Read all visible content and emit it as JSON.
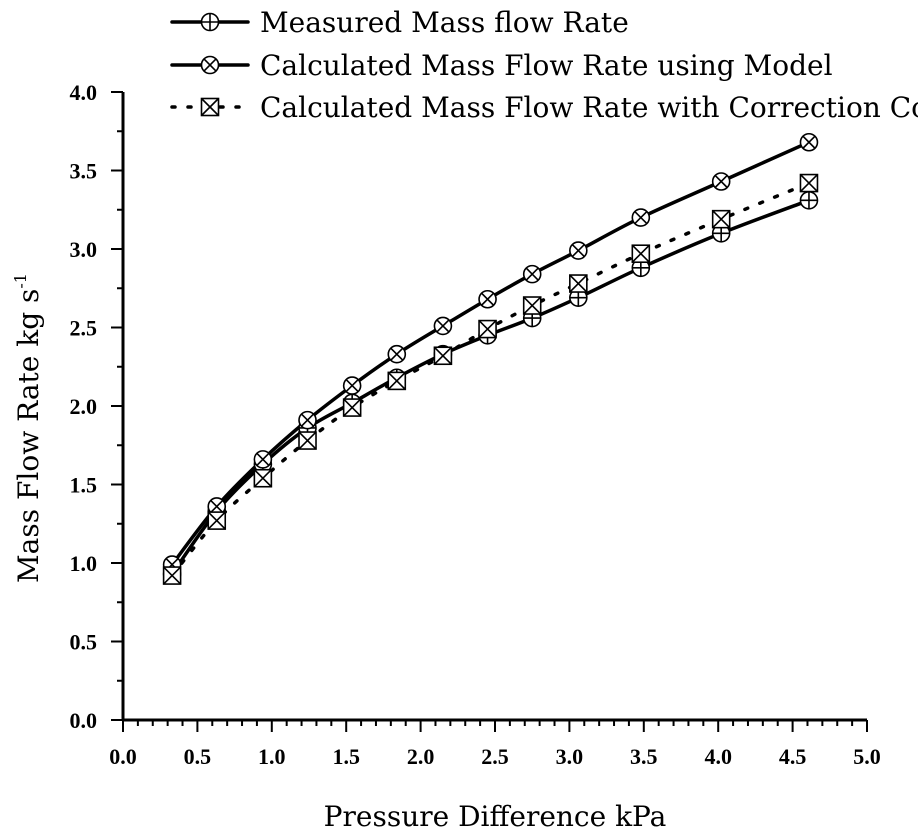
{
  "chart_data": {
    "type": "line",
    "title": "",
    "xlabel": "Pressure Difference kPa",
    "ylabel": "Mass Flow Rate kg s",
    "ylabel_superscript": "-1",
    "xlim": [
      0.0,
      5.0
    ],
    "ylim": [
      0.0,
      4.0
    ],
    "x_ticks": [
      "0.0",
      "0.5",
      "1.0",
      "1.5",
      "2.0",
      "2.5",
      "3.0",
      "3.5",
      "4.0",
      "4.5",
      "5.0"
    ],
    "y_ticks": [
      "0.0",
      "0.5",
      "1.0",
      "1.5",
      "2.0",
      "2.5",
      "3.0",
      "3.5",
      "4.0"
    ],
    "grid": false,
    "legend_position": "top",
    "x": [
      0.33,
      0.63,
      0.94,
      1.24,
      1.54,
      1.84,
      2.15,
      2.45,
      2.75,
      3.06,
      3.48,
      4.02,
      4.61
    ],
    "series": [
      {
        "name": "Measured Mass flow Rate",
        "marker": "circle-plus",
        "line": "solid",
        "values": [
          0.93,
          1.33,
          1.63,
          1.86,
          2.02,
          2.18,
          2.33,
          2.45,
          2.56,
          2.69,
          2.88,
          3.1,
          3.31
        ]
      },
      {
        "name": "Calculated Mass Flow Rate using Model",
        "marker": "circle-x",
        "line": "solid",
        "values": [
          0.99,
          1.36,
          1.66,
          1.91,
          2.13,
          2.33,
          2.51,
          2.68,
          2.84,
          2.99,
          3.2,
          3.43,
          3.68
        ]
      },
      {
        "name": "Calculated Mass Flow Rate with Correction Co",
        "marker": "square-x",
        "line": "dotted",
        "values": [
          0.92,
          1.27,
          1.54,
          1.78,
          1.99,
          2.16,
          2.32,
          2.49,
          2.64,
          2.78,
          2.97,
          3.19,
          3.42
        ]
      }
    ]
  }
}
